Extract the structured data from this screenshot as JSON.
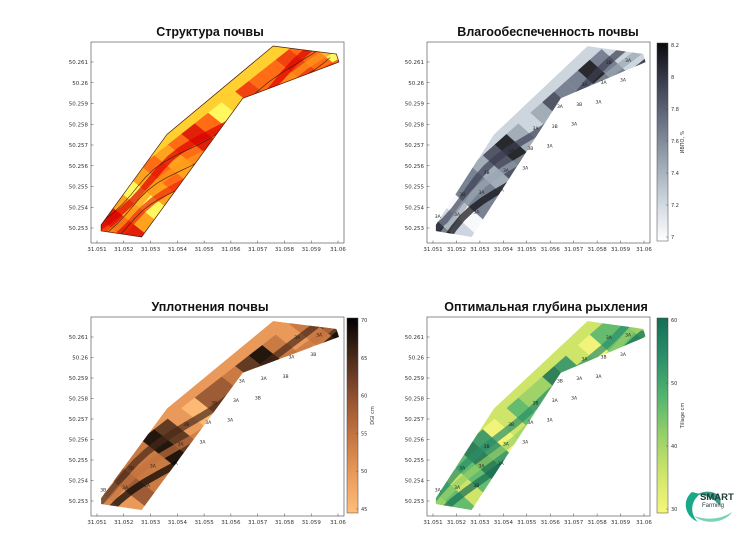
{
  "x_ticks": [
    "31.051",
    "31.052",
    "31.053",
    "31.054",
    "31.055",
    "31.056",
    "31.057",
    "31.058",
    "31.059",
    "31.06"
  ],
  "y_ticks": [
    "50.261",
    "50.26",
    "50.259",
    "50.258",
    "50.257",
    "50.256",
    "50.255",
    "50.254",
    "50.253"
  ],
  "logo": {
    "line1": "SMART",
    "line2": "Farming"
  },
  "chart_data": [
    {
      "type": "heatmap",
      "title": "Структура почвы",
      "xlabel": "",
      "ylabel": "",
      "xlim": [
        31.051,
        31.06
      ],
      "ylim": [
        50.2527,
        50.2615
      ],
      "colormap": [
        "#ffff66",
        "#ffd030",
        "#ff9a1a",
        "#ff5a10",
        "#ee2a0a",
        "#dd0000"
      ],
      "colorbar": null,
      "point_labels": []
    },
    {
      "type": "heatmap",
      "title": "Влагообеспеченность почвы",
      "xlabel": "",
      "ylabel": "",
      "xlim": [
        31.051,
        31.06
      ],
      "ylim": [
        50.2527,
        50.2615
      ],
      "colormap": [
        "#ffffff",
        "#cdd6de",
        "#9aa6b2",
        "#6a7385",
        "#3c3f52",
        "#0a0a0e"
      ],
      "colorbar": {
        "label": "ИВПО, %",
        "ticks": [
          "8.2",
          "8",
          "7.8",
          "7.6",
          "7.4",
          "7.2",
          "7"
        ]
      },
      "point_labels": [
        "3A",
        "3A",
        "3A",
        "3B",
        "3A",
        "3A",
        "3B",
        "3A",
        "3A",
        "3A",
        "3B",
        "3A",
        "3A",
        "3B",
        "3A",
        "3A",
        "3B",
        "3A",
        "3A",
        "3A",
        "3A",
        "3B",
        "3A"
      ]
    },
    {
      "type": "heatmap",
      "title": "Уплотнения почвы",
      "xlabel": "",
      "ylabel": "",
      "xlim": [
        31.051,
        31.06
      ],
      "ylim": [
        50.2527,
        50.2615
      ],
      "colormap": [
        "#ffbe7a",
        "#e99a5a",
        "#c47440",
        "#8f5030",
        "#4a2a1a",
        "#000000"
      ],
      "colorbar": {
        "label": "DGI cm",
        "ticks": [
          "70",
          "65",
          "60",
          "55",
          "50",
          "45"
        ]
      },
      "point_labels": [
        "3B",
        "3A",
        "3A",
        "3B",
        "3A",
        "3A",
        "3B",
        "3A",
        "3A",
        "3B",
        "3A",
        "3A",
        "3B",
        "3A",
        "3B",
        "3A",
        "3A",
        "3B",
        "3A",
        "3A",
        "3B",
        "3A",
        "3A"
      ]
    },
    {
      "type": "heatmap",
      "title": "Оптимальная глубина рыхления",
      "xlabel": "",
      "ylabel": "",
      "xlim": [
        31.051,
        31.06
      ],
      "ylim": [
        50.2527,
        50.2615
      ],
      "colormap": [
        "#f7f77a",
        "#cfe56a",
        "#96d068",
        "#52b46e",
        "#2a8f6a",
        "#146e55"
      ],
      "colorbar": {
        "label": "Tillage cm",
        "ticks": [
          "60",
          "50",
          "40",
          "30"
        ]
      },
      "point_labels": [
        "3A",
        "3A",
        "3B",
        "3A",
        "3A",
        "3A",
        "3B",
        "3A",
        "3A",
        "3B",
        "3A",
        "3A",
        "3B",
        "3A",
        "3A",
        "3B",
        "3A",
        "3A",
        "3A",
        "3B",
        "3A",
        "3A",
        "3A"
      ]
    }
  ]
}
